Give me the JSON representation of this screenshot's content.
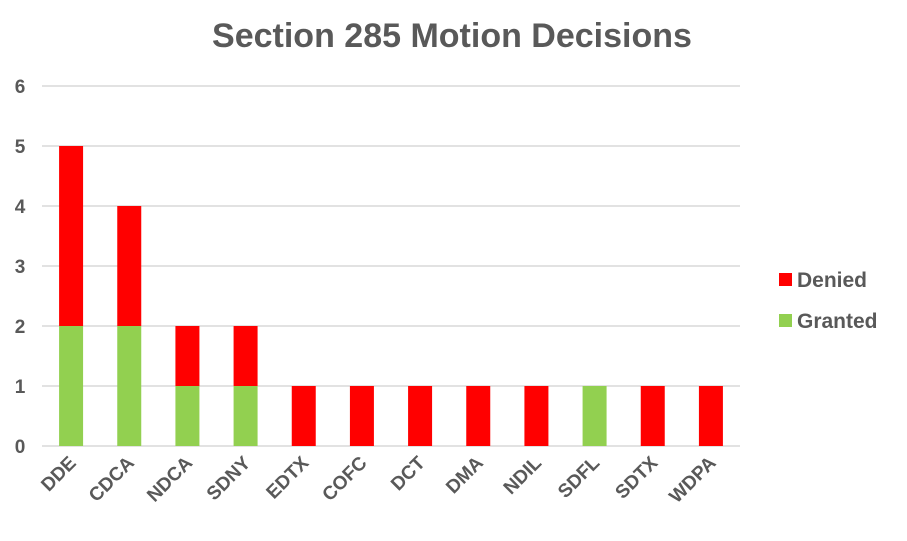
{
  "chart_data": {
    "type": "bar",
    "stacked": true,
    "title": "Section 285 Motion Decisions",
    "xlabel": "",
    "ylabel": "",
    "categories": [
      "DDE",
      "CDCA",
      "NDCA",
      "SDNY",
      "EDTX",
      "COFC",
      "DCT",
      "DMA",
      "NDIL",
      "SDFL",
      "SDTX",
      "WDPA"
    ],
    "series": [
      {
        "name": "Granted",
        "color": "#92d050",
        "values": [
          2,
          2,
          1,
          1,
          0,
          0,
          0,
          0,
          0,
          1,
          0,
          0
        ]
      },
      {
        "name": "Denied",
        "color": "#ff0000",
        "values": [
          3,
          2,
          1,
          1,
          1,
          1,
          1,
          1,
          1,
          0,
          1,
          1
        ]
      }
    ],
    "ylim": [
      0,
      6
    ],
    "yticks": [
      0,
      1,
      2,
      3,
      4,
      5,
      6
    ],
    "legend_order": [
      "Denied",
      "Granted"
    ],
    "legend_position": "right",
    "grid": true
  }
}
